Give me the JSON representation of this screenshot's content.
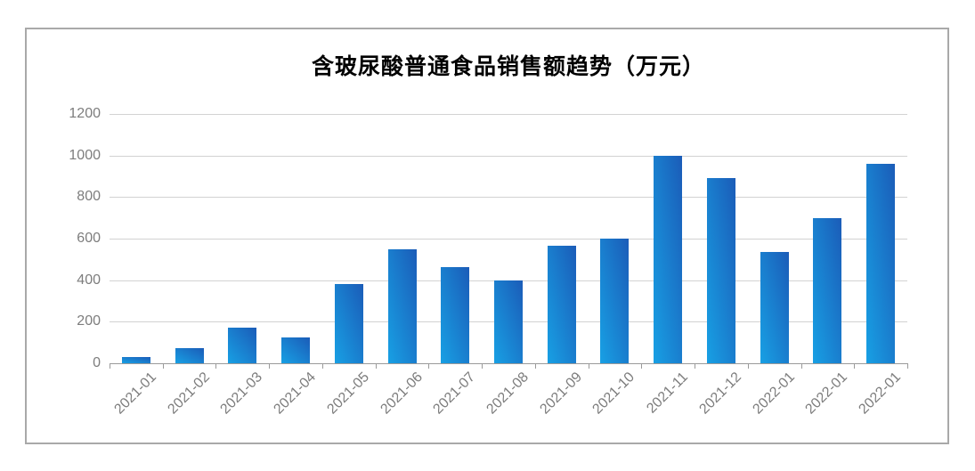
{
  "chart_data": {
    "type": "bar",
    "title": "含玻尿酸普通食品销售额趋势（万元）",
    "xlabel": "",
    "ylabel": "",
    "categories": [
      "2021-01",
      "2021-02",
      "2021-03",
      "2021-04",
      "2021-05",
      "2021-06",
      "2021-07",
      "2021-08",
      "2021-09",
      "2021-10",
      "2021-11",
      "2021-12",
      "2022-01",
      "2022-01",
      "2022-01"
    ],
    "values": [
      30,
      75,
      170,
      125,
      380,
      550,
      465,
      400,
      565,
      600,
      1000,
      890,
      535,
      700,
      960
    ],
    "y_ticks": [
      0,
      200,
      400,
      600,
      800,
      1000,
      1200
    ],
    "ylim": [
      0,
      1200
    ],
    "grid": true,
    "legend": false,
    "x_label_rotation_deg": -45,
    "colors": {
      "bar_gradient_start": "#18a0e4",
      "bar_gradient_end": "#1b5cb8",
      "gridline": "#d2d2d2",
      "axis_line": "#9a9a9a",
      "axis_label": "#7d7d7d",
      "title": "#000000",
      "frame_border": "#a9a9a9",
      "background": "#ffffff"
    }
  }
}
